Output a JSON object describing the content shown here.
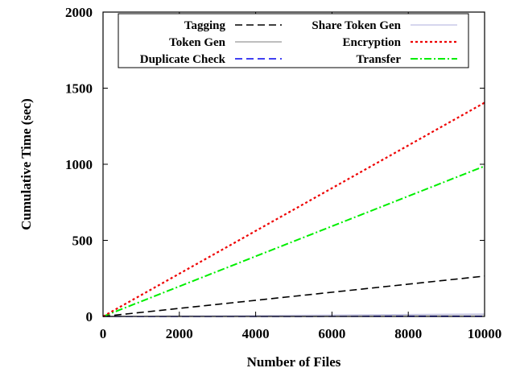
{
  "chart_data": {
    "type": "line",
    "title": "",
    "xlabel": "Number of Files",
    "ylabel": "Cumulative Time (sec)",
    "xlim": [
      0,
      10000
    ],
    "ylim": [
      0,
      2000
    ],
    "x_ticks": [
      "0",
      "2000",
      "4000",
      "6000",
      "8000",
      "10000"
    ],
    "y_ticks": [
      "0",
      "500",
      "1000",
      "1500",
      "2000"
    ],
    "grid": false,
    "legend_position": "top",
    "x": [
      0,
      10000
    ],
    "series": [
      {
        "name": "Tagging",
        "values": [
          0,
          265
        ],
        "color": "#000000",
        "dash": "dashed"
      },
      {
        "name": "Token Gen",
        "values": [
          0,
          12
        ],
        "color": "#a8a8a8",
        "dash": "solid"
      },
      {
        "name": "Duplicate Check",
        "values": [
          0,
          1
        ],
        "color": "#0000ee",
        "dash": "dashed"
      },
      {
        "name": "Share Token Gen",
        "values": [
          0,
          16
        ],
        "color": "#c8c8e8",
        "dash": "solid"
      },
      {
        "name": "Encryption",
        "values": [
          0,
          1405
        ],
        "color": "#ee0000",
        "dash": "dotted"
      },
      {
        "name": "Transfer",
        "values": [
          0,
          988
        ],
        "color": "#00ee00",
        "dash": "dashdot"
      }
    ]
  }
}
